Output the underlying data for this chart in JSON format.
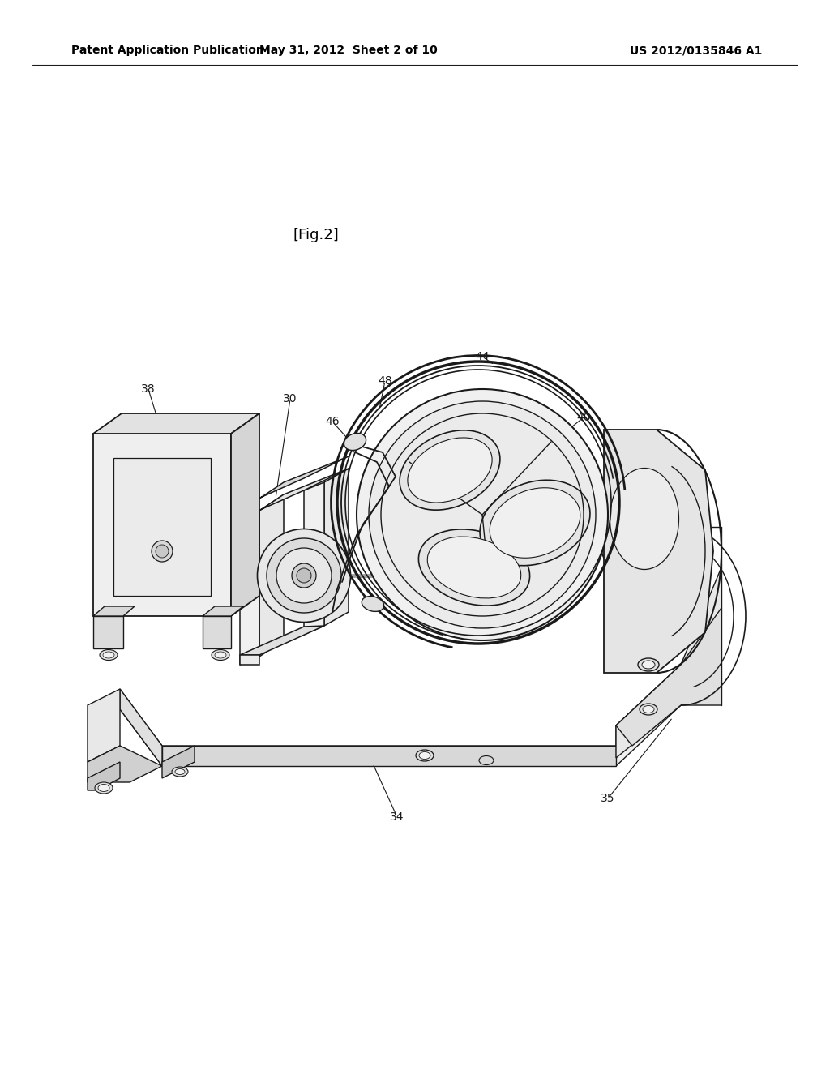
{
  "background_color": "#ffffff",
  "header_left": "Patent Application Publication",
  "header_center": "May 31, 2012  Sheet 2 of 10",
  "header_right": "US 2012/0135846 A1",
  "fig_label": "[Fig.2]",
  "font_size_header": 10,
  "font_size_label": 10,
  "font_size_fig": 13,
  "line_color": "#1a1a1a",
  "fill_light": "#f2f2f2",
  "fill_mid": "#e0e0e0",
  "fill_dark": "#cccccc"
}
